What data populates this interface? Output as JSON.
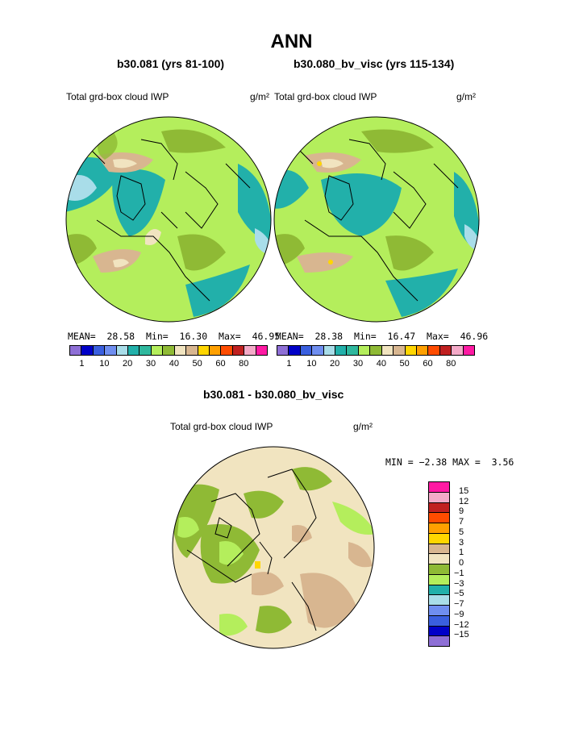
{
  "title": "ANN",
  "panels": [
    {
      "case_title": "b30.081 (yrs 81-100)",
      "variable_label": "Total grd-box cloud IWP",
      "units": "g/m²",
      "mean_label": "MEAN=",
      "mean_value": "28.58",
      "min_label": "Min=",
      "min_value": "16.30",
      "max_label": "Max=",
      "max_value": "46.95"
    },
    {
      "case_title": "b30.080_bv_visc (yrs 115-134)",
      "variable_label": "Total grd-box cloud IWP",
      "units": "g/m²",
      "mean_label": "MEAN=",
      "mean_value": "28.38",
      "min_label": "Min=",
      "min_value": "16.47",
      "max_label": "Max=",
      "max_value": "46.96"
    }
  ],
  "top_colorbar": {
    "colors": [
      "#8e6fd6",
      "#0000c8",
      "#3a5fdf",
      "#6f8ef0",
      "#a9dde9",
      "#22b0aa",
      "#2fb89e",
      "#b4ee5c",
      "#8fba35",
      "#f1e4c0",
      "#d8b690",
      "#ffd600",
      "#ffa000",
      "#ff4c00",
      "#c02020",
      "#f4aac8",
      "#ff1aa3"
    ],
    "tick_labels": [
      "1",
      "10",
      "20",
      "30",
      "40",
      "50",
      "60",
      "80"
    ]
  },
  "difference": {
    "title": "b30.081 - b30.080_bv_visc",
    "variable_label": "Total grd-box cloud IWP",
    "units": "g/m²",
    "min_label": "MIN =",
    "min_value": "−2.38",
    "max_label": "MAX =",
    "max_value": "3.56",
    "colorbar": {
      "colors": [
        "#ff1aa3",
        "#f4aac8",
        "#c02020",
        "#ff4c00",
        "#ffa000",
        "#ffd600",
        "#d8b690",
        "#f1e4c0",
        "#8fba35",
        "#b4ee5c",
        "#22b0aa",
        "#a9dde9",
        "#6f8ef0",
        "#3a5fdf",
        "#0000c8",
        "#8e6fd6"
      ],
      "tick_labels": [
        "15",
        "12",
        "9",
        "7",
        "5",
        "3",
        "1",
        "0",
        "−1",
        "−3",
        "−5",
        "−7",
        "−9",
        "−12",
        "−15"
      ]
    }
  }
}
